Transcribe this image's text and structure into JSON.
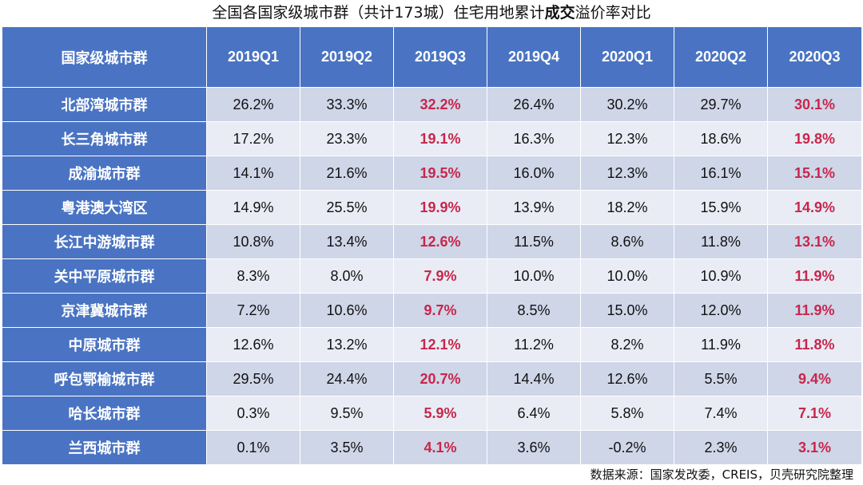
{
  "chart_data": {
    "type": "table",
    "title_prefix": "全国各国家级城市群（共计173城）住宅用地累计",
    "title_bold": "成交",
    "title_suffix": "溢价率对比",
    "row_header": "国家级城市群",
    "columns": [
      "2019Q1",
      "2019Q2",
      "2019Q3",
      "2019Q4",
      "2020Q1",
      "2020Q2",
      "2020Q3"
    ],
    "highlight_columns": [
      "2019Q3",
      "2020Q3"
    ],
    "highlight_color": "#c8264b",
    "header_color": "#4a74c3",
    "rows": [
      {
        "name": "北部湾城市群",
        "values": [
          "26.2%",
          "33.3%",
          "32.2%",
          "26.4%",
          "30.2%",
          "29.7%",
          "30.1%"
        ]
      },
      {
        "name": "长三角城市群",
        "values": [
          "17.2%",
          "23.3%",
          "19.1%",
          "16.3%",
          "12.3%",
          "18.6%",
          "19.8%"
        ]
      },
      {
        "name": "成渝城市群",
        "values": [
          "14.1%",
          "21.6%",
          "19.5%",
          "16.0%",
          "12.3%",
          "16.1%",
          "15.1%"
        ]
      },
      {
        "name": "粤港澳大湾区",
        "values": [
          "14.9%",
          "25.5%",
          "19.9%",
          "13.9%",
          "18.2%",
          "15.9%",
          "14.9%"
        ]
      },
      {
        "name": "长江中游城市群",
        "values": [
          "10.8%",
          "13.4%",
          "12.6%",
          "11.5%",
          "8.6%",
          "11.8%",
          "13.1%"
        ]
      },
      {
        "name": "关中平原城市群",
        "values": [
          "8.3%",
          "8.0%",
          "7.9%",
          "10.0%",
          "10.0%",
          "10.9%",
          "11.9%"
        ]
      },
      {
        "name": "京津冀城市群",
        "values": [
          "7.2%",
          "10.6%",
          "9.7%",
          "8.5%",
          "15.0%",
          "12.0%",
          "11.9%"
        ]
      },
      {
        "name": "中原城市群",
        "values": [
          "12.6%",
          "13.2%",
          "12.1%",
          "11.2%",
          "8.2%",
          "11.9%",
          "11.8%"
        ]
      },
      {
        "name": "呼包鄂榆城市群",
        "values": [
          "29.5%",
          "24.4%",
          "20.7%",
          "14.4%",
          "12.6%",
          "5.5%",
          "9.4%"
        ]
      },
      {
        "name": "哈长城市群",
        "values": [
          "0.3%",
          "9.5%",
          "5.9%",
          "6.4%",
          "5.8%",
          "7.4%",
          "7.1%"
        ]
      },
      {
        "name": "兰西城市群",
        "values": [
          "0.1%",
          "3.5%",
          "4.1%",
          "3.6%",
          "-0.2%",
          "2.3%",
          "3.1%"
        ]
      }
    ]
  },
  "source": "数据来源：国家发改委，CREIS，贝壳研究院整理"
}
